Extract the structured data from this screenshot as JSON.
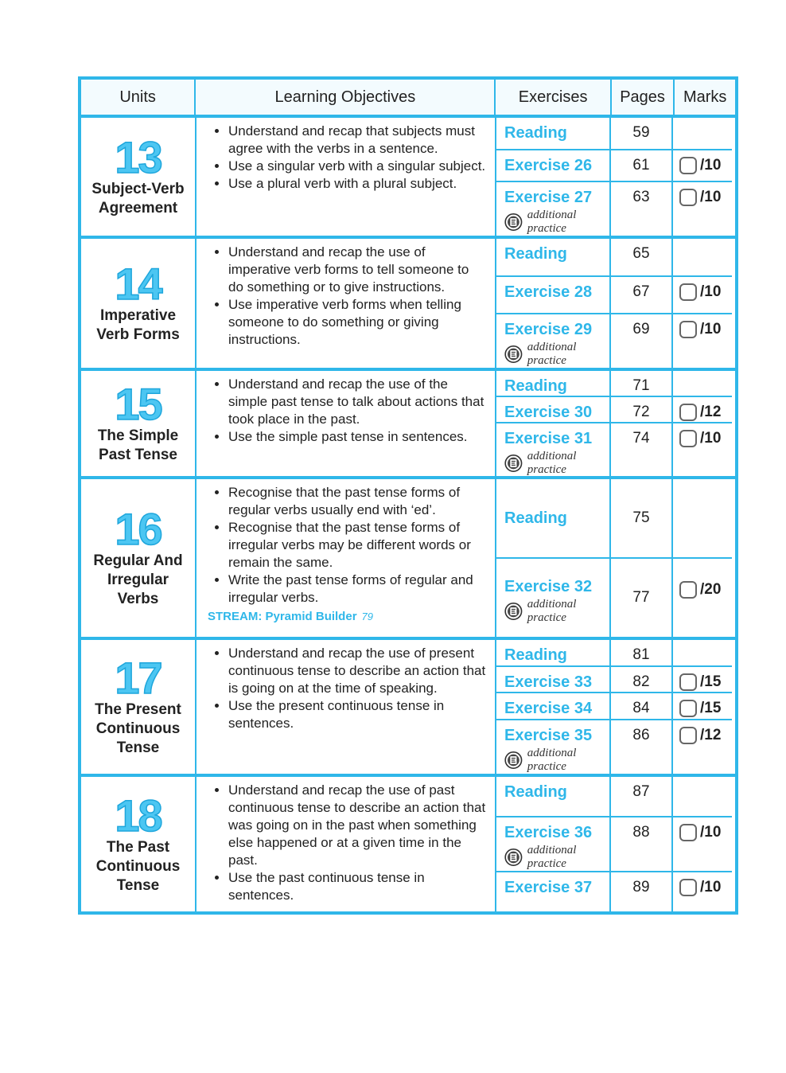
{
  "table": {
    "headers": [
      "Units",
      "Learning Objectives",
      "Exercises",
      "Pages",
      "Marks"
    ],
    "units": [
      {
        "number": "13",
        "title": "Subject-Verb Agreement",
        "objectives": [
          "Understand and recap that subjects must agree with the verbs in a sentence.",
          "Use a singular verb with a singular subject.",
          "Use a plural verb with a plural subject."
        ],
        "exercises": [
          {
            "name": "Reading",
            "page": 59
          },
          {
            "name": "Exercise 26",
            "page": 61,
            "marks": "/10"
          },
          {
            "name": "Exercise 27",
            "page": 63,
            "marks": "/10",
            "note": "additional practice"
          }
        ]
      },
      {
        "number": "14",
        "title": "Imperative Verb Forms",
        "objectives": [
          "Understand and recap the use of imperative verb forms to tell someone to do something or to give instructions.",
          "Use imperative verb forms when telling someone to do something or giving instructions."
        ],
        "exercises": [
          {
            "name": "Reading",
            "page": 65
          },
          {
            "name": "Exercise 28",
            "page": 67,
            "marks": "/10"
          },
          {
            "name": "Exercise 29",
            "page": 69,
            "marks": "/10",
            "note": "additional practice"
          }
        ]
      },
      {
        "number": "15",
        "title": "The Simple Past Tense",
        "objectives": [
          "Understand and recap the use of the simple past tense to talk about actions that took place in the past.",
          "Use the simple past tense in sentences."
        ],
        "exercises": [
          {
            "name": "Reading",
            "page": 71
          },
          {
            "name": "Exercise 30",
            "page": 72,
            "marks": "/12"
          },
          {
            "name": "Exercise 31",
            "page": 74,
            "marks": "/10",
            "note": "additional practice"
          }
        ]
      },
      {
        "number": "16",
        "title": "Regular And Irregular Verbs",
        "objectives": [
          "Recognise that the past tense forms of regular verbs usually end with ‘ed’.",
          "Recognise that the past tense forms of irregular verbs may be different words or remain the same.",
          "Write the past tense forms of regular and irregular verbs."
        ],
        "stream": {
          "label": "STREAM: Pyramid Builder",
          "page": 79
        },
        "exercises": [
          {
            "name": "Reading",
            "page": 75
          },
          {
            "name": "Exercise 32",
            "page": 77,
            "marks": "/20",
            "note": "additional practice"
          }
        ]
      },
      {
        "number": "17",
        "title": "The Present Continuous Tense",
        "objectives": [
          "Understand and recap the use of present continuous tense to describe an action that is going on at the time of speaking.",
          "Use the present continuous tense in sentences."
        ],
        "exercises": [
          {
            "name": "Reading",
            "page": 81
          },
          {
            "name": "Exercise 33",
            "page": 82,
            "marks": "/15"
          },
          {
            "name": "Exercise 34",
            "page": 84,
            "marks": "/15"
          },
          {
            "name": "Exercise 35",
            "page": 86,
            "marks": "/12",
            "note": "additional practice"
          }
        ]
      },
      {
        "number": "18",
        "title": "The Past Continuous Tense",
        "objectives": [
          "Understand and recap the use of past continuous tense to describe an action that was going on in the past when something else happened or at a given time in the past.",
          "Use the past continuous tense in sentences."
        ],
        "exercises": [
          {
            "name": "Reading",
            "page": 87
          },
          {
            "name": "Exercise 36",
            "page": 88,
            "marks": "/10",
            "note": "additional practice"
          },
          {
            "name": "Exercise 37",
            "page": 89,
            "marks": "/10"
          }
        ]
      }
    ]
  }
}
